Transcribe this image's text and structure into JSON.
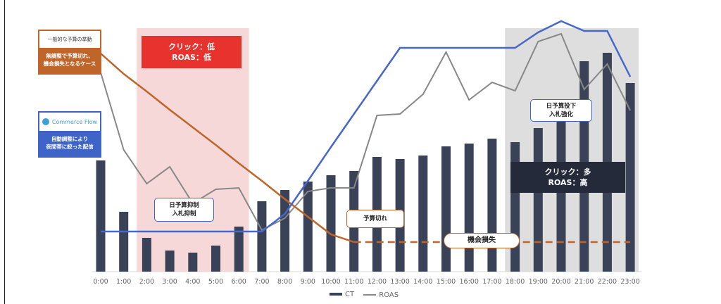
{
  "chart_data": {
    "type": "bar",
    "categories": [
      "0:00",
      "1:00",
      "2:00",
      "3:00",
      "4:00",
      "5:00",
      "6:00",
      "7:00",
      "8:00",
      "9:00",
      "10:00",
      "11:00",
      "12:00",
      "13:00",
      "14:00",
      "15:00",
      "16:00",
      "17:00",
      "18:00",
      "19:00",
      "20:00",
      "21:00",
      "22:00",
      "23:00"
    ],
    "series": [
      {
        "name": "CT",
        "type": "bar",
        "values": [
          158,
          85,
          48,
          30,
          27,
          37,
          64,
          100,
          116,
          128,
          137,
          143,
          163,
          160,
          165,
          178,
          182,
          189,
          184,
          204,
          214,
          299,
          311,
          268
        ]
      },
      {
        "name": "ROAS",
        "type": "line",
        "values": [
          283,
          173,
          125,
          149,
          97,
          117,
          119,
          59,
          76,
          114,
          119,
          119,
          222,
          224,
          252,
          312,
          244,
          269,
          257,
          327,
          338,
          259,
          295,
          229
        ]
      },
      {
        "name": "",
        "type": "line",
        "values": [
          57,
          57,
          57,
          57,
          57,
          57,
          57,
          57,
          82,
          129,
          177,
          224,
          271,
          318,
          318,
          318,
          318,
          318,
          318,
          340,
          356,
          342,
          342,
          277
        ]
      },
      {
        "name": "",
        "type": "line",
        "values": [
          310,
          281,
          256,
          230,
          205,
          180,
          154,
          129,
          103,
          78,
          53,
          42,
          42,
          42,
          42,
          42,
          42,
          42,
          42,
          42,
          42,
          42,
          42,
          42
        ]
      }
    ],
    "legend": [
      "CT",
      "ROAS"
    ],
    "legend_position": "bottom",
    "ylim": [
      0,
      370
    ],
    "colors": {
      "ct": "#3a4257",
      "roas": "#888888",
      "auto": "#4767c9",
      "manual": "#c0652a",
      "lowZone": "#f7d8d8",
      "highZone": "#dedede"
    }
  },
  "annotations": {
    "orange_tag_top": "一般的な予算の挙動",
    "orange_tag_bottom_1": "無調整で予算切れ、",
    "orange_tag_bottom_2": "機会損失となるケース",
    "blue_tag_top": "Commerce Flow",
    "blue_tag_bottom_1": "自動調整により",
    "blue_tag_bottom_2": "夜間帯に絞った配信",
    "red_label_1": "クリック：低",
    "red_label_2": "ROAS：低",
    "dark_label_1": "クリック：多",
    "dark_label_2": "ROAS：高",
    "bubble_suppress_1": "日予算抑制",
    "bubble_suppress_2": "入札抑制",
    "bubble_boost_1": "日予算投下",
    "bubble_boost_2": "入札強化",
    "bubble_cut": "予算切れ",
    "pill_loss": "機会損失"
  },
  "legend": {
    "ct": "CT",
    "roas": "ROAS"
  }
}
